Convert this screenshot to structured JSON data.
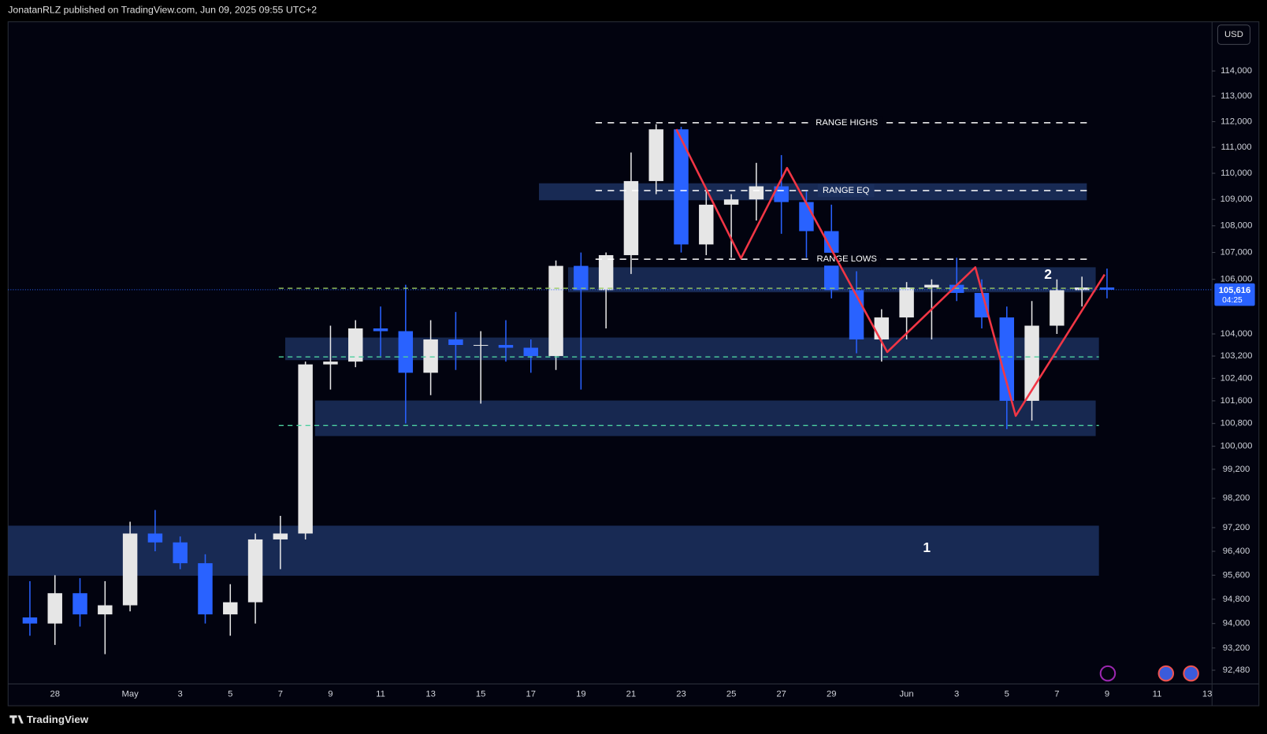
{
  "header": {
    "text": "JonatanRLZ published on TradingView.com, Jun 09, 2025 09:55 UTC+2"
  },
  "chart_data": {
    "type": "candlestick",
    "currency": "USD",
    "categories": [
      null,
      "28",
      null,
      null,
      "May",
      null,
      "3",
      null,
      "5",
      null,
      "7",
      null,
      "9",
      null,
      "11",
      null,
      "13",
      null,
      "15",
      null,
      "17",
      null,
      "19",
      null,
      "21",
      null,
      "23",
      null,
      "25",
      null,
      "27",
      null,
      "29",
      null,
      null,
      "Jun",
      null,
      "3",
      null,
      "5",
      null,
      "7",
      null,
      "9",
      null,
      "11",
      null,
      "13"
    ],
    "open": [
      94200,
      94000,
      95000,
      94300,
      94600,
      97000,
      96700,
      96000,
      94300,
      94700,
      96800,
      97000,
      102900,
      103000,
      104200,
      104100,
      102600,
      103800,
      103600,
      103600,
      103500,
      103200,
      106500,
      105600,
      106900,
      109700,
      111700,
      107300,
      108800,
      109000,
      109500,
      108900,
      107800,
      105600,
      103800,
      104600,
      105700,
      105800,
      105500,
      104600,
      101600,
      104300,
      105600,
      105700,
      null,
      null,
      null,
      null
    ],
    "high": [
      95400,
      95600,
      95500,
      95400,
      97400,
      97800,
      96900,
      96300,
      95300,
      97000,
      97600,
      103000,
      104300,
      104500,
      105000,
      105800,
      104500,
      104800,
      104100,
      104500,
      103800,
      106700,
      107000,
      107000,
      110800,
      111900,
      111800,
      109400,
      109200,
      110400,
      110700,
      109300,
      108800,
      106300,
      104900,
      105900,
      106000,
      106800,
      106000,
      105000,
      105200,
      106000,
      106100,
      106400,
      null,
      null,
      null,
      null
    ],
    "low": [
      93600,
      93300,
      93900,
      93000,
      94400,
      96400,
      95800,
      94000,
      93600,
      94000,
      95800,
      96800,
      102000,
      102800,
      103200,
      100800,
      101800,
      102700,
      101500,
      103000,
      102600,
      102700,
      102000,
      104200,
      106200,
      109200,
      107000,
      106900,
      106800,
      108200,
      107700,
      106800,
      105300,
      103300,
      103000,
      103800,
      103800,
      105200,
      104200,
      100600,
      100900,
      104000,
      105000,
      105300,
      null,
      null,
      null,
      null
    ],
    "close": [
      94000,
      95000,
      94300,
      94600,
      97000,
      96700,
      96000,
      94300,
      94700,
      96800,
      97000,
      102900,
      103000,
      104200,
      104100,
      102600,
      103800,
      103600,
      103600,
      103500,
      103200,
      106500,
      105600,
      106900,
      109700,
      111700,
      107300,
      108800,
      109000,
      109500,
      108900,
      107800,
      105600,
      103800,
      104600,
      105700,
      105800,
      105500,
      104600,
      101600,
      104300,
      105600,
      105700,
      105616,
      null,
      null,
      null,
      null
    ],
    "up_color": "#e6e6e6",
    "down_color": "#2962ff",
    "log_scale": true,
    "grid": false,
    "ylim": [
      92090,
      115940
    ],
    "yticks": [
      {
        "value": 114000,
        "label": "114,000"
      },
      {
        "value": 113000,
        "label": "113,000"
      },
      {
        "value": 112000,
        "label": "112,000"
      },
      {
        "value": 111000,
        "label": "111,000"
      },
      {
        "value": 110000,
        "label": "110,000"
      },
      {
        "value": 109000,
        "label": "109,000"
      },
      {
        "value": 108000,
        "label": "108,000"
      },
      {
        "value": 107000,
        "label": "107,000"
      },
      {
        "value": 106000,
        "label": "106,000"
      },
      {
        "value": 104000,
        "label": "104,000"
      },
      {
        "value": 103200,
        "label": "103,200"
      },
      {
        "value": 102400,
        "label": "102,400"
      },
      {
        "value": 101600,
        "label": "101,600"
      },
      {
        "value": 100800,
        "label": "100,800"
      },
      {
        "value": 100000,
        "label": "100,000"
      },
      {
        "value": 99200,
        "label": "99,200"
      },
      {
        "value": 98200,
        "label": "98,200"
      },
      {
        "value": 97200,
        "label": "97,200"
      },
      {
        "value": 96400,
        "label": "96,400"
      },
      {
        "value": 95600,
        "label": "95,600"
      },
      {
        "value": 94800,
        "label": "94,800"
      },
      {
        "value": 94000,
        "label": "94,000"
      },
      {
        "value": 93200,
        "label": "93,200"
      },
      {
        "value": 92480,
        "label": "92,480"
      }
    ],
    "last_price": {
      "value": 105616,
      "label": "105,616"
    },
    "countdown": "04:25",
    "annotations": {
      "range_highs": "RANGE HIGHS",
      "range_eq": "RANGE EQ",
      "range_lows": "RANGE LOWS",
      "zone_1": "1",
      "zone_2": "2"
    }
  },
  "footer": {
    "brand": "TradingView"
  }
}
